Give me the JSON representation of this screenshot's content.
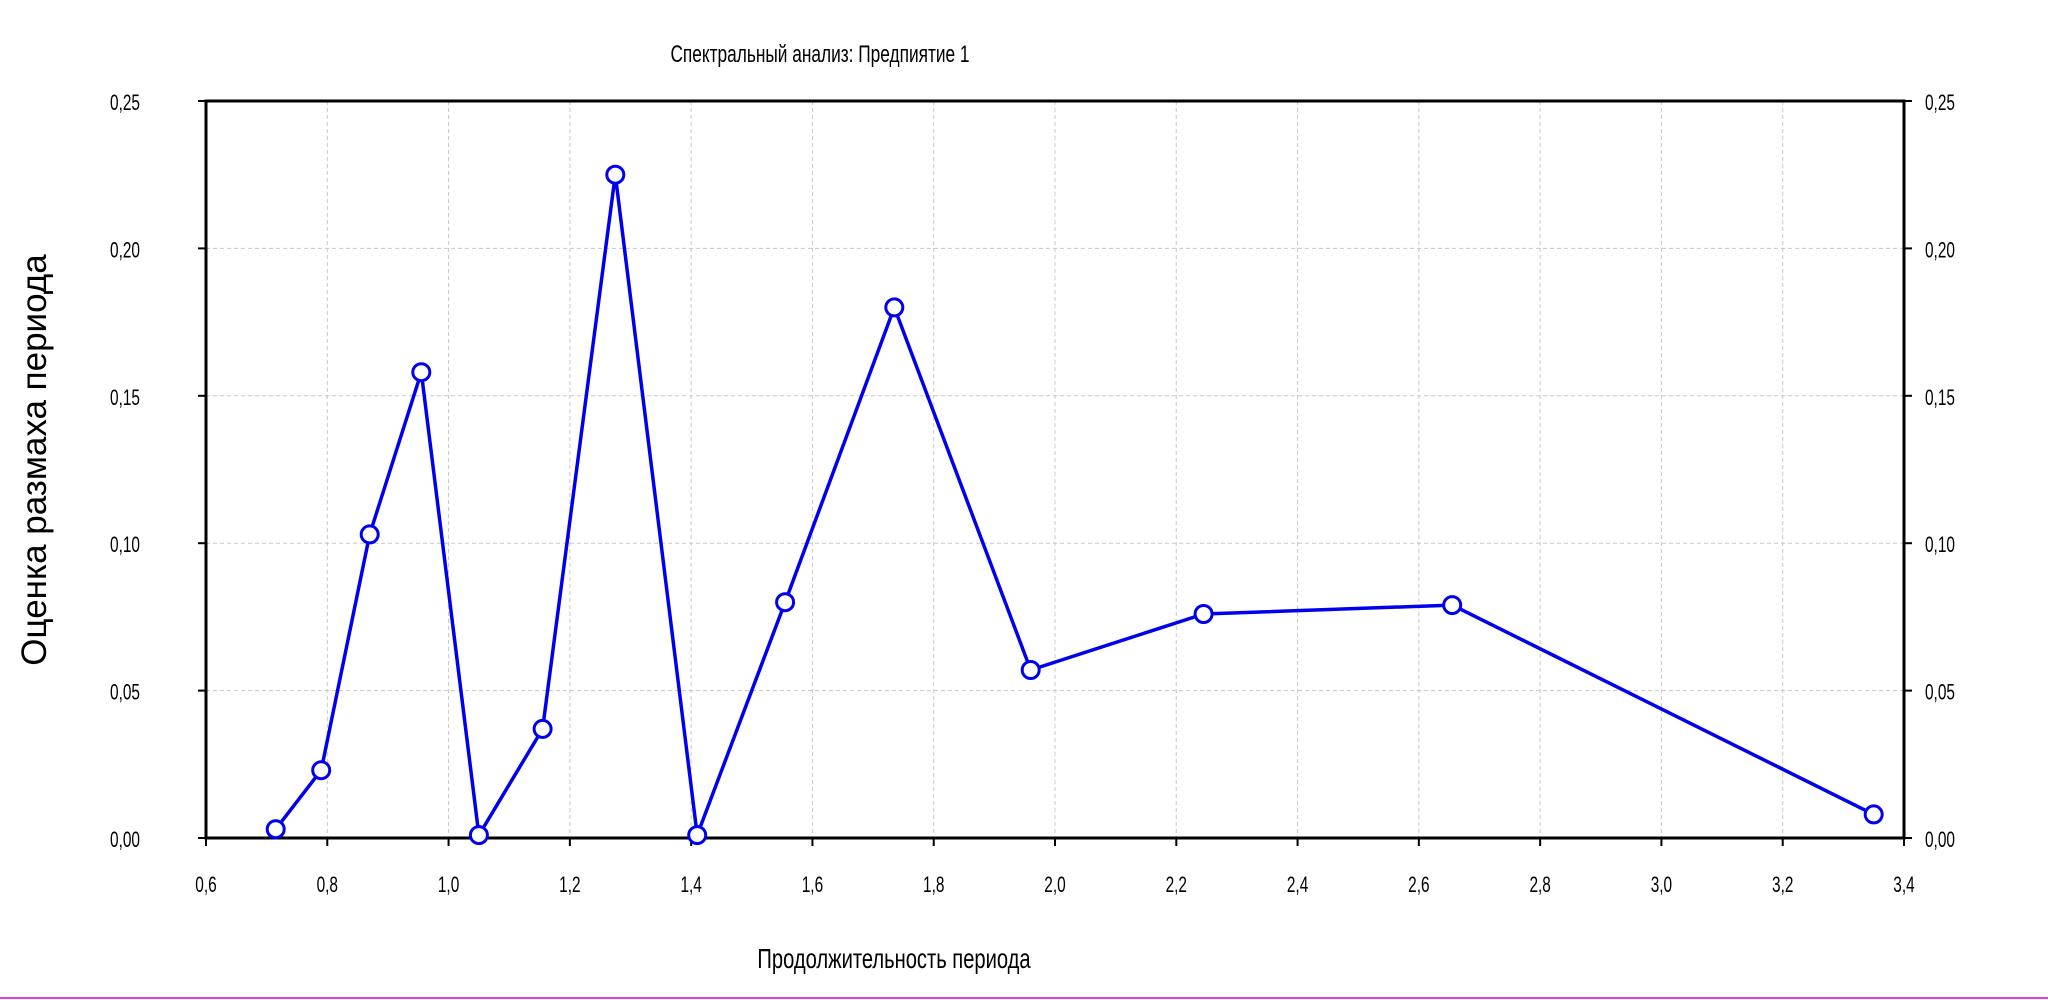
{
  "chart_data": {
    "type": "line",
    "title": "Спектральный анализ: Предпиятие 1",
    "xlabel": "Продолжительность периода",
    "ylabel": "Оценка размаха периода",
    "xlim": [
      0.6,
      3.4
    ],
    "ylim": [
      0.0,
      0.25
    ],
    "x_ticks": [
      "0,6",
      "0,8",
      "1,0",
      "1,2",
      "1,4",
      "1,6",
      "1,8",
      "2,0",
      "2,2",
      "2,4",
      "2,6",
      "2,8",
      "3,0",
      "3,2",
      "3,4"
    ],
    "y_ticks": [
      "0,00",
      "0,05",
      "0,10",
      "0,15",
      "0,20",
      "0,25"
    ],
    "y_ticks_right": [
      "0,00",
      "0,05",
      "0,10",
      "0,15",
      "0,20",
      "0,25"
    ],
    "grid": true,
    "legend": "none",
    "series": [
      {
        "color": "#0000ee",
        "x": [
          0.715,
          0.79,
          0.87,
          0.955,
          1.05,
          1.155,
          1.275,
          1.41,
          1.555,
          1.735,
          1.96,
          2.245,
          2.655,
          3.35
        ],
        "y": [
          0.003,
          0.023,
          0.103,
          0.158,
          0.001,
          0.037,
          0.225,
          0.001,
          0.08,
          0.18,
          0.057,
          0.076,
          0.079,
          0.008
        ]
      }
    ]
  },
  "colors": {
    "series": "#0000ee",
    "grid": "#c8c8c8",
    "frame": "#000000",
    "page_border": "#e040e0"
  }
}
